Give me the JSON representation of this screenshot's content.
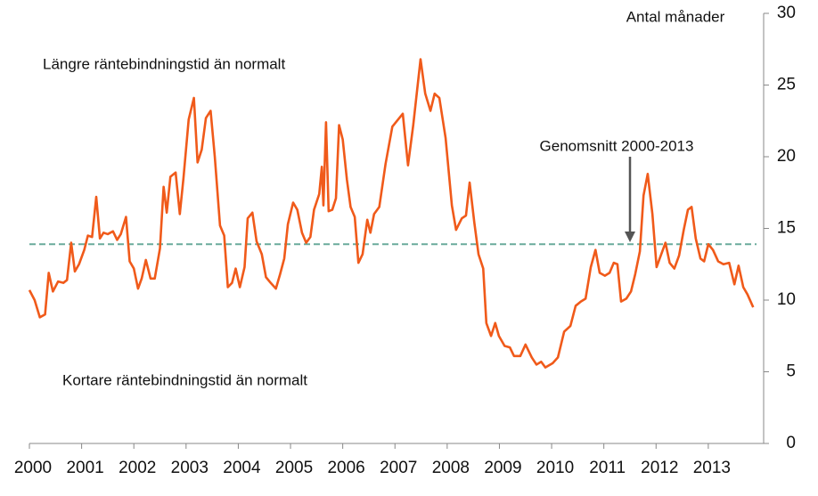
{
  "chart_data": {
    "type": "line",
    "ylabel": "Antal månader",
    "annotations": [
      "Längre räntebindningstid än normalt",
      "Kortare räntebindningstid än normalt"
    ],
    "reference_line": {
      "value": 13.9,
      "label": "Genomsnitt 2000-2013",
      "color": "#6aab9c"
    },
    "xlim": [
      2000,
      2014.06
    ],
    "xticks": [
      2000,
      2001,
      2002,
      2003,
      2004,
      2005,
      2006,
      2007,
      2008,
      2009,
      2010,
      2011,
      2012,
      2013
    ],
    "ylim": [
      0,
      30
    ],
    "yticks": [
      0,
      5,
      10,
      15,
      20,
      25,
      30
    ],
    "grid": false,
    "series": [
      {
        "color": "#f05a1a",
        "x": [
          2000.0,
          2000.1,
          2000.2,
          2000.3,
          2000.37,
          2000.45,
          2000.55,
          2000.65,
          2000.72,
          2000.8,
          2000.87,
          2000.95,
          2001.05,
          2001.12,
          2001.2,
          2001.28,
          2001.35,
          2001.42,
          2001.5,
          2001.6,
          2001.68,
          2001.75,
          2001.85,
          2001.92,
          2002.0,
          2002.08,
          2002.15,
          2002.23,
          2002.32,
          2002.4,
          2002.5,
          2002.57,
          2002.63,
          2002.7,
          2002.8,
          2002.88,
          2002.95,
          2003.05,
          2003.15,
          2003.22,
          2003.3,
          2003.38,
          2003.47,
          2003.55,
          2003.65,
          2003.73,
          2003.8,
          2003.88,
          2003.95,
          2004.03,
          2004.12,
          2004.18,
          2004.27,
          2004.35,
          2004.45,
          2004.53,
          2004.62,
          2004.72,
          2004.8,
          2004.88,
          2004.95,
          2005.05,
          2005.13,
          2005.22,
          2005.3,
          2005.38,
          2005.45,
          2005.55,
          2005.6,
          2005.63,
          2005.68,
          2005.73,
          2005.8,
          2005.87,
          2005.93,
          2006.0,
          2006.08,
          2006.15,
          2006.23,
          2006.3,
          2006.38,
          2006.47,
          2006.53,
          2006.6,
          2006.7,
          2006.82,
          2006.95,
          2007.15,
          2007.25,
          2007.35,
          2007.49,
          2007.58,
          2007.68,
          2007.76,
          2007.85,
          2007.97,
          2008.09,
          2008.17,
          2008.28,
          2008.36,
          2008.43,
          2008.52,
          2008.6,
          2008.69,
          2008.75,
          2008.84,
          2008.92,
          2008.99,
          2009.1,
          2009.2,
          2009.28,
          2009.4,
          2009.5,
          2009.62,
          2009.71,
          2009.8,
          2009.88,
          2010.02,
          2010.12,
          2010.24,
          2010.36,
          2010.46,
          2010.56,
          2010.65,
          2010.75,
          2010.84,
          2010.92,
          2011.02,
          2011.11,
          2011.19,
          2011.26,
          2011.33,
          2011.43,
          2011.52,
          2011.6,
          2011.69,
          2011.76,
          2011.84,
          2011.93,
          2012.01,
          2012.1,
          2012.18,
          2012.26,
          2012.35,
          2012.44,
          2012.53,
          2012.61,
          2012.68,
          2012.76,
          2012.85,
          2012.92,
          2013.0,
          2013.09,
          2013.19,
          2013.29,
          2013.4,
          2013.5,
          2013.58,
          2013.67,
          2013.75,
          2013.86
        ],
        "values": [
          10.7,
          10.0,
          8.8,
          9.0,
          11.9,
          10.6,
          11.3,
          11.2,
          11.4,
          14.0,
          12.0,
          12.5,
          13.5,
          14.5,
          14.4,
          17.2,
          14.3,
          14.7,
          14.6,
          14.8,
          14.2,
          14.6,
          15.8,
          12.7,
          12.2,
          10.8,
          11.5,
          12.8,
          11.5,
          11.5,
          13.6,
          17.9,
          16.1,
          18.6,
          18.9,
          16.0,
          18.5,
          22.6,
          24.1,
          19.6,
          20.5,
          22.7,
          23.2,
          20.0,
          15.2,
          14.5,
          10.9,
          11.2,
          12.2,
          10.9,
          12.3,
          15.7,
          16.1,
          14.1,
          13.2,
          11.6,
          11.2,
          10.8,
          11.8,
          12.9,
          15.3,
          16.8,
          16.3,
          14.7,
          14.0,
          14.4,
          16.3,
          17.4,
          19.3,
          16.6,
          22.4,
          16.2,
          16.3,
          17.1,
          22.2,
          21.2,
          18.4,
          16.5,
          15.8,
          12.6,
          13.2,
          15.6,
          14.7,
          16.0,
          16.5,
          19.5,
          22.1,
          23.0,
          19.4,
          22.2,
          26.8,
          24.4,
          23.2,
          24.4,
          24.1,
          21.3,
          16.6,
          14.9,
          15.7,
          15.9,
          18.2,
          15.4,
          13.2,
          12.2,
          8.4,
          7.5,
          8.4,
          7.5,
          6.8,
          6.7,
          6.1,
          6.1,
          6.9,
          6.0,
          5.5,
          5.7,
          5.3,
          5.6,
          6.0,
          7.8,
          8.2,
          9.6,
          9.9,
          10.1,
          12.3,
          13.5,
          11.9,
          11.7,
          11.9,
          12.6,
          12.5,
          9.9,
          10.1,
          10.6,
          11.8,
          13.4,
          17.3,
          18.8,
          16.0,
          12.3,
          13.2,
          14.0,
          12.6,
          12.2,
          13.1,
          14.9,
          16.3,
          16.5,
          14.3,
          12.9,
          12.7,
          13.9,
          13.5,
          12.7,
          12.5,
          12.6,
          11.1,
          12.4,
          10.9,
          10.4,
          9.5
        ]
      }
    ]
  }
}
